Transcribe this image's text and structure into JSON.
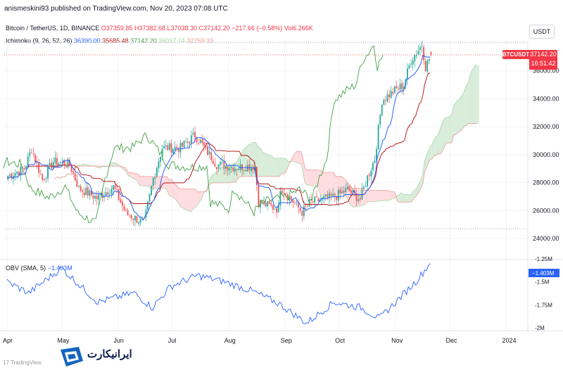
{
  "header": {
    "credit": "anismeskini93 published on TradingView.com, Nov 20, 2023 07:08 UTC"
  },
  "legend": {
    "symbol": "Bitcoin / TetherUS, 1D, BINANCE",
    "open": "O37359.85",
    "high": "H37382.68",
    "low": "L37038.30",
    "close": "C37142.20",
    "change": "−217.66 (−0.58%)",
    "volume": "Vol6.266K",
    "ichimoku_name": "Ichimoku (9, 26, 52, 26)",
    "ichi_conversion": "36390.00",
    "ichi_base": "35685.48",
    "ichi_lagging": "37142.20",
    "ichi_span_a": "36037.74",
    "ichi_span_b": "32259.33",
    "obv_name": "OBV (SMA, 5)",
    "obv_value": "−1.403M"
  },
  "currency_button": "USDT",
  "price_tag": {
    "symbol": "BTCUSDT",
    "price": "37142.20",
    "countdown": "16:51:42"
  },
  "watermark": {
    "brand": "ایرانیکارت",
    "tradingview": "TradingView"
  },
  "colors": {
    "up": "#26a69a",
    "down": "#ef5350",
    "conversion": "#2962ff",
    "base": "#b71c1c",
    "lagging": "#43a047",
    "cloud_bull": "#c8e6c9",
    "cloud_bear": "#ffcdd2",
    "obv": "#2962ff"
  },
  "chart_data": [
    {
      "type": "candlestick",
      "title": "Bitcoin / TetherUS, 1D, BINANCE",
      "x_ticks": [
        "Apr",
        "May",
        "Jun",
        "Jul",
        "Aug",
        "Sep",
        "Oct",
        "Nov",
        "Dec",
        "2024"
      ],
      "y_ticks": [
        "24000.00",
        "26000.00",
        "28000.00",
        "30000.00",
        "32000.00",
        "34000.00",
        "36000.00",
        "38000.00"
      ],
      "ylim": [
        23500,
        38200
      ],
      "keypoints_close": [
        [
          "Apr 1",
          28500
        ],
        [
          "Apr 10",
          29000
        ],
        [
          "Apr 14",
          30400
        ],
        [
          "Apr 20",
          28200
        ],
        [
          "Apr 26",
          29500
        ],
        [
          "May 5",
          29300
        ],
        [
          "May 10",
          27600
        ],
        [
          "May 20",
          26900
        ],
        [
          "May 29",
          27700
        ],
        [
          "Jun 5",
          25800
        ],
        [
          "Jun 15",
          25100
        ],
        [
          "Jun 20",
          28300
        ],
        [
          "Jun 25",
          30500
        ],
        [
          "Jul 5",
          30500
        ],
        [
          "Jul 13",
          31400
        ],
        [
          "Jul 25",
          29300
        ],
        [
          "Aug 5",
          29100
        ],
        [
          "Aug 15",
          29200
        ],
        [
          "Aug 17",
          26600
        ],
        [
          "Aug 28",
          26100
        ],
        [
          "Aug 29",
          27700
        ],
        [
          "Sep 10",
          25900
        ],
        [
          "Sep 15",
          26600
        ],
        [
          "Sep 28",
          27000
        ],
        [
          "Oct 5",
          27500
        ],
        [
          "Oct 12",
          26800
        ],
        [
          "Oct 16",
          28400
        ],
        [
          "Oct 20",
          29700
        ],
        [
          "Oct 24",
          33900
        ],
        [
          "Oct 31",
          34600
        ],
        [
          "Nov 5",
          35000
        ],
        [
          "Nov 9",
          36800
        ],
        [
          "Nov 12",
          37300
        ],
        [
          "Nov 15",
          37900
        ],
        [
          "Nov 17",
          36300
        ],
        [
          "Nov 20",
          37142
        ]
      ],
      "last_price": 37142.2
    },
    {
      "type": "line",
      "title": "OBV (SMA, 5)",
      "y_ticks": [
        "-1.25M",
        "-1.5M",
        "-1.75M",
        "-2M"
      ],
      "ylim": [
        -2.02,
        -1.22
      ],
      "last_value": -1.403
    }
  ]
}
